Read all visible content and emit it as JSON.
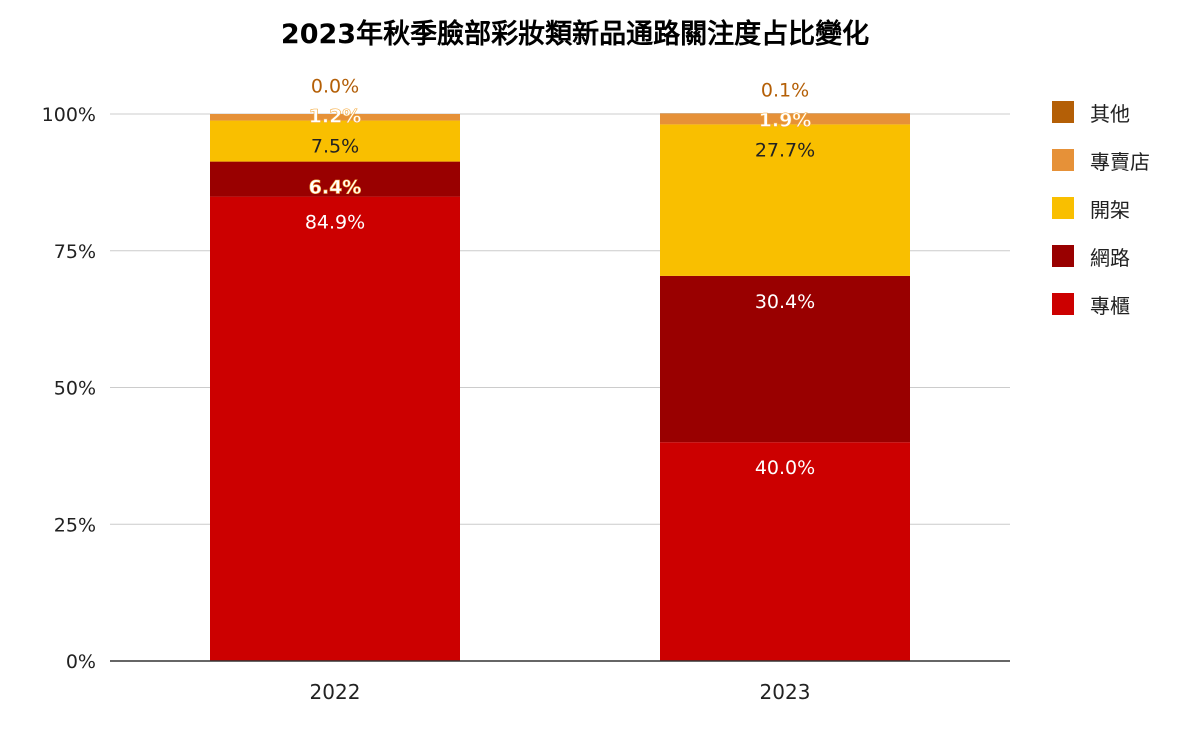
{
  "chart_data": {
    "type": "bar",
    "stacked": true,
    "title": "2023年秋季臉部彩妝類新品通路關注度占比變化",
    "categories": [
      "2022",
      "2023"
    ],
    "ylim": [
      0,
      100
    ],
    "yticks": [
      "0%",
      "25%",
      "50%",
      "75%",
      "100%"
    ],
    "grid": true,
    "legend_position": "right",
    "series": [
      {
        "name": "專櫃",
        "color": "#cc0000",
        "values": [
          84.9,
          40.0
        ],
        "labels": [
          "84.9%",
          "40.0%"
        ],
        "label_color": "#ffffff"
      },
      {
        "name": "網路",
        "color": "#990000",
        "values": [
          6.4,
          30.4
        ],
        "labels": [
          "6.4%",
          "30.4%"
        ],
        "label_color": "#ffffff"
      },
      {
        "name": "開架",
        "color": "#f9bf00",
        "values": [
          7.5,
          27.7
        ],
        "labels": [
          "7.5%",
          "27.7%"
        ],
        "label_color": "#222222"
      },
      {
        "name": "專賣店",
        "color": "#e69138",
        "values": [
          1.2,
          1.9
        ],
        "labels": [
          "1.2%",
          "1.9%"
        ],
        "label_color": "#ffffff"
      },
      {
        "name": "其他",
        "color": "#b45f06",
        "values": [
          0.0,
          0.1
        ],
        "labels": [
          "0.0%",
          "0.1%"
        ],
        "label_color": "#b45f06"
      }
    ]
  }
}
